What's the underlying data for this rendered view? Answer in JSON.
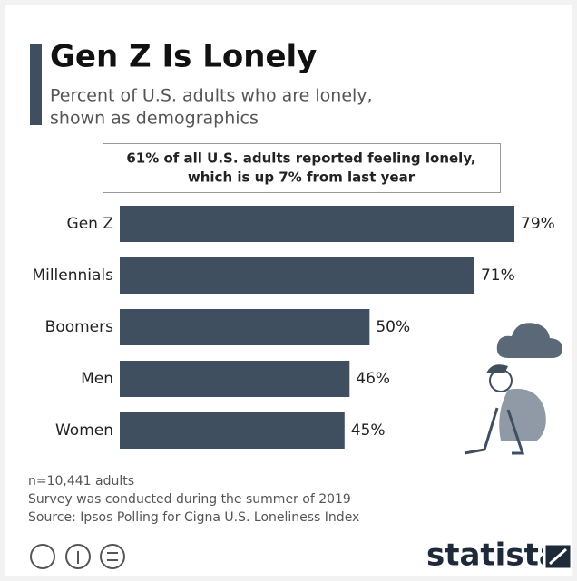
{
  "chart_data": {
    "type": "bar",
    "orientation": "horizontal",
    "title": "Gen Z Is Lonely",
    "subtitle": [
      "Percent of U.S. adults who are lonely,",
      "shown as demographics"
    ],
    "annotation": [
      "61% of all U.S. adults reported feeling lonely,",
      "which is up 7% from last year"
    ],
    "categories": [
      "Gen Z",
      "Millennials",
      "Boomers",
      "Men",
      "Women"
    ],
    "values": [
      79,
      71,
      50,
      46,
      45
    ],
    "value_labels": [
      "79%",
      "71%",
      "50%",
      "46%",
      "45%"
    ],
    "color": "#404f60",
    "notes": [
      "n=10,441 adults",
      "Survey was conducted during the summer of 2019",
      "Source: Ipsos Polling for Cigna U.S. Loneliness Index"
    ],
    "brand": "statista"
  }
}
